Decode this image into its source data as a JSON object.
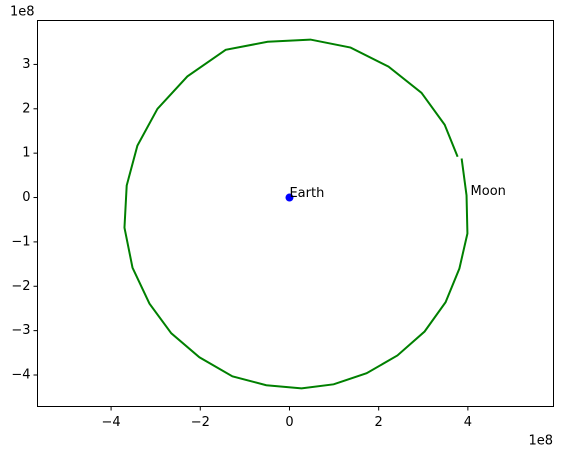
{
  "chart_data": {
    "type": "line",
    "x_offset_label": "1e8",
    "y_offset_label": "1e8",
    "series": [
      {
        "name": "Moon",
        "color": "#008000",
        "x": [
          3.86,
          3.97,
          3.99,
          3.81,
          3.5,
          3.03,
          2.42,
          1.73,
          0.99,
          0.27,
          -0.52,
          -1.28,
          -2.02,
          -2.65,
          -3.14,
          -3.52,
          -3.7,
          -3.65,
          -3.41,
          -2.96,
          -2.29,
          -1.43,
          -0.49,
          0.47,
          1.37,
          2.22,
          2.96,
          3.48,
          3.77
        ],
        "values": [
          0.88,
          0.05,
          -0.81,
          -1.6,
          -2.36,
          -3.02,
          -3.56,
          -3.96,
          -4.21,
          -4.3,
          -4.23,
          -4.03,
          -3.6,
          -3.06,
          -2.39,
          -1.58,
          -0.68,
          0.27,
          1.17,
          2.0,
          2.73,
          3.33,
          3.51,
          3.56,
          3.38,
          2.95,
          2.36,
          1.64,
          0.92
        ]
      },
      {
        "name": "Earth",
        "color": "#0000ff",
        "marker": "point",
        "x": [
          0
        ],
        "values": [
          0
        ]
      }
    ],
    "xlim": [
      -5.65,
      5.92
    ],
    "ylim": [
      -4.71,
      3.99
    ],
    "xticks": [
      {
        "value": -4,
        "label": "−4"
      },
      {
        "value": -2,
        "label": "−2"
      },
      0,
      2,
      4
    ],
    "yticks": [
      {
        "value": -4,
        "label": "−4"
      },
      {
        "value": -3,
        "label": "−3"
      },
      {
        "value": -2,
        "label": "−2"
      },
      {
        "value": -1,
        "label": "−1"
      },
      0,
      1,
      2,
      3
    ],
    "grid": false
  }
}
